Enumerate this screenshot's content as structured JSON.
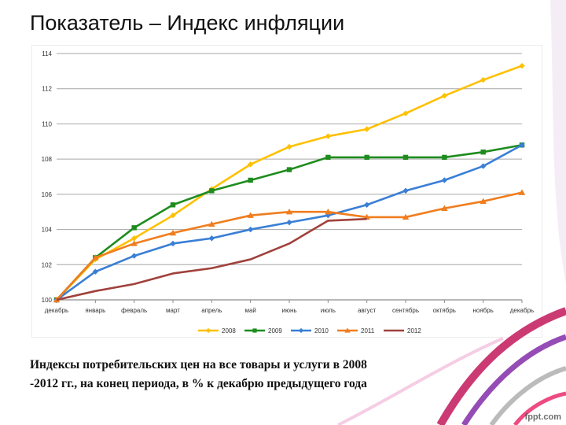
{
  "slide": {
    "title": "Показатель – Индекс инфляции",
    "caption_line1": "Индексы потребительских цен на все товары и услуги в 2008",
    "caption_line2": "-2012 гг., на конец периода, в % к декабрю предыдущего года",
    "watermark": "fppt.com"
  },
  "chart_data": {
    "type": "line",
    "title": "",
    "xlabel": "",
    "ylabel": "",
    "categories": [
      "декабрь",
      "январь",
      "февраль",
      "март",
      "апрель",
      "май",
      "июнь",
      "июль",
      "август",
      "сентябрь",
      "октябрь",
      "ноябрь",
      "декабрь"
    ],
    "ylim": [
      100,
      114
    ],
    "yticks": [
      100,
      102,
      104,
      106,
      108,
      110,
      112,
      114
    ],
    "grid": "horizontal",
    "legend_position": "bottom",
    "series": [
      {
        "name": "2008",
        "color": "#FFC000",
        "marker": "diamond",
        "values": [
          100,
          102.3,
          103.5,
          104.8,
          106.3,
          107.7,
          108.7,
          109.3,
          109.7,
          110.6,
          111.6,
          112.5,
          113.3
        ]
      },
      {
        "name": "2009",
        "color": "#1E8C1E",
        "marker": "square",
        "values": [
          100,
          102.4,
          104.1,
          105.4,
          106.2,
          106.8,
          107.4,
          108.1,
          108.1,
          108.1,
          108.1,
          108.4,
          108.8
        ]
      },
      {
        "name": "2010",
        "color": "#3A7FD5",
        "marker": "diamond",
        "values": [
          100,
          101.6,
          102.5,
          103.2,
          103.5,
          104.0,
          104.4,
          104.8,
          105.4,
          106.2,
          106.8,
          107.6,
          108.8
        ]
      },
      {
        "name": "2011",
        "color": "#F07D1E",
        "marker": "triangle",
        "values": [
          100,
          102.4,
          103.2,
          103.8,
          104.3,
          104.8,
          105.0,
          105.0,
          104.7,
          104.7,
          105.2,
          105.6,
          106.1
        ]
      },
      {
        "name": "2012",
        "color": "#A0413C",
        "marker": "none",
        "values": [
          100,
          100.5,
          100.9,
          101.5,
          101.8,
          102.3,
          103.2,
          104.5,
          104.6,
          null,
          null,
          null,
          null
        ]
      }
    ]
  }
}
